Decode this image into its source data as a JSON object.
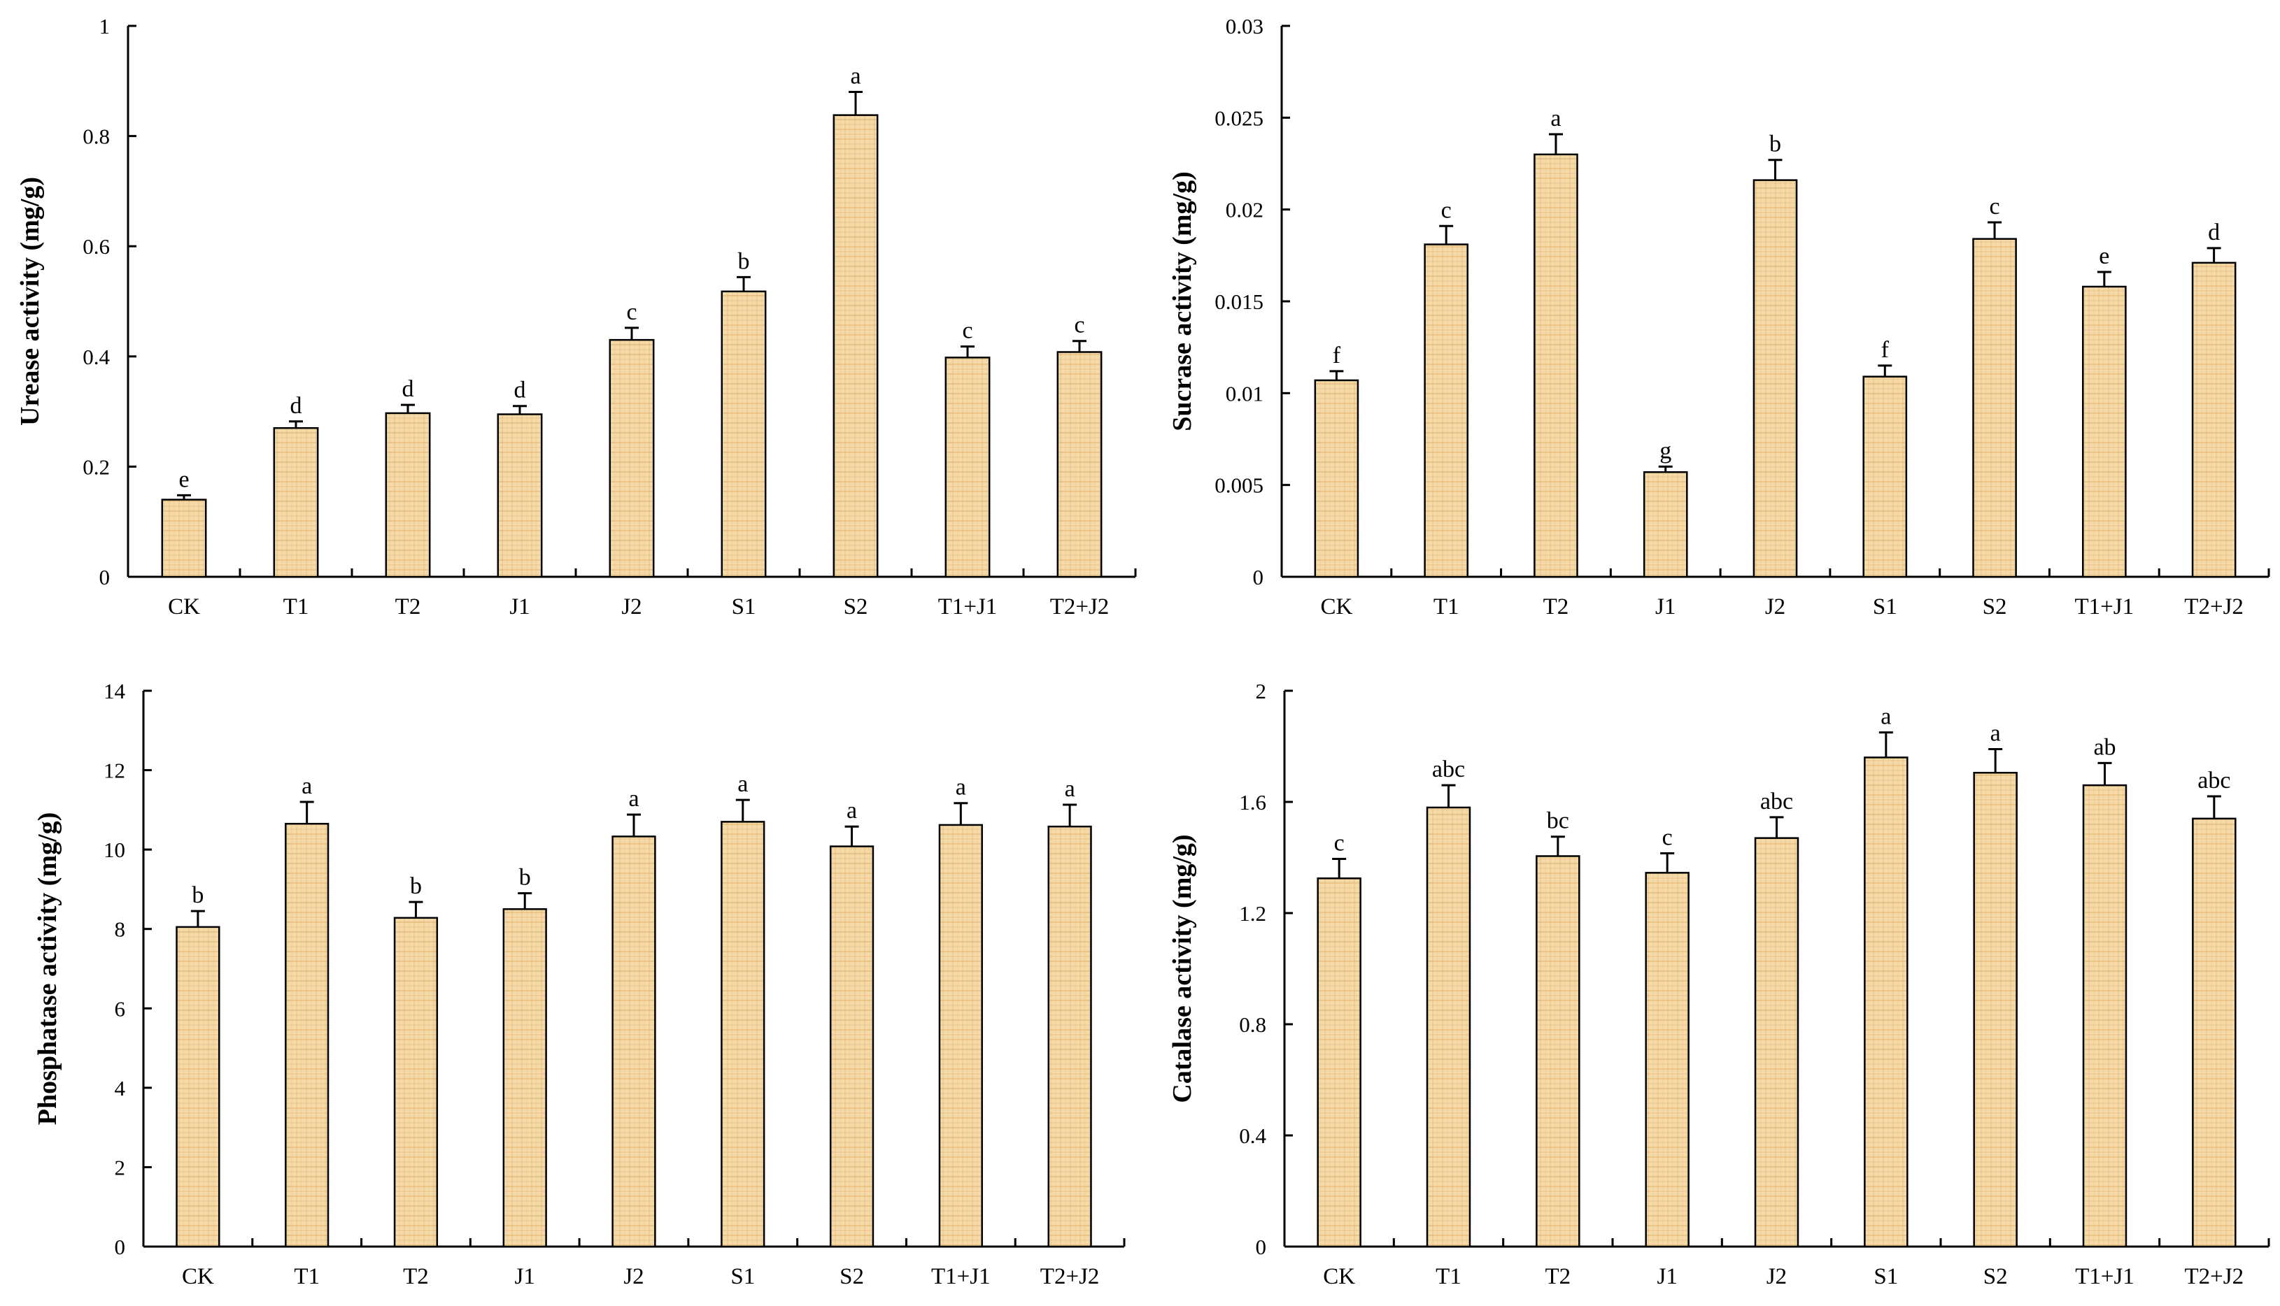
{
  "colors": {
    "bar_fill": "#f5d9a6",
    "bar_texture": "#d9a866",
    "axis": "#000000"
  },
  "chart_data": [
    {
      "type": "bar",
      "id": "urease",
      "ylabel": "Urease activity (mg/g)",
      "categories": [
        "CK",
        "T1",
        "T2",
        "J1",
        "J2",
        "S1",
        "S2",
        "T1+J1",
        "T2+J2"
      ],
      "values": [
        0.14,
        0.27,
        0.297,
        0.295,
        0.43,
        0.518,
        0.838,
        0.398,
        0.408
      ],
      "errors": [
        0.008,
        0.012,
        0.015,
        0.015,
        0.022,
        0.026,
        0.042,
        0.02,
        0.02
      ],
      "significance": [
        "e",
        "d",
        "d",
        "d",
        "c",
        "b",
        "a",
        "c",
        "c"
      ],
      "ylim": [
        0,
        1
      ],
      "yticks": [
        0,
        0.2,
        0.4,
        0.6,
        0.8,
        1
      ],
      "ytick_labels": [
        "0",
        "0.2",
        "0.4",
        "0.6",
        "0.8",
        "1"
      ]
    },
    {
      "type": "bar",
      "id": "sucrase",
      "ylabel": "Sucrase activity (mg/g)",
      "categories": [
        "CK",
        "T1",
        "T2",
        "J1",
        "J2",
        "S1",
        "S2",
        "T1+J1",
        "T2+J2"
      ],
      "values": [
        0.0107,
        0.0181,
        0.023,
        0.0057,
        0.0216,
        0.0109,
        0.0184,
        0.0158,
        0.0171
      ],
      "errors": [
        0.0005,
        0.001,
        0.0011,
        0.0003,
        0.0011,
        0.0006,
        0.0009,
        0.0008,
        0.0008
      ],
      "significance": [
        "f",
        "c",
        "a",
        "g",
        "b",
        "f",
        "c",
        "e",
        "d"
      ],
      "ylim": [
        0,
        0.03
      ],
      "yticks": [
        0,
        0.005,
        0.01,
        0.015,
        0.02,
        0.025,
        0.03
      ],
      "ytick_labels": [
        "0",
        "0.005",
        "0.01",
        "0.015",
        "0.02",
        "0.025",
        "0.03"
      ]
    },
    {
      "type": "bar",
      "id": "phosphatase",
      "ylabel": "Phosphatase activity (mg/g)",
      "categories": [
        "CK",
        "T1",
        "T2",
        "J1",
        "J2",
        "S1",
        "S2",
        "T1+J1",
        "T2+J2"
      ],
      "values": [
        8.05,
        10.65,
        8.28,
        8.5,
        10.33,
        10.7,
        10.08,
        10.62,
        10.58
      ],
      "errors": [
        0.4,
        0.55,
        0.4,
        0.4,
        0.55,
        0.55,
        0.5,
        0.55,
        0.55
      ],
      "significance": [
        "b",
        "a",
        "b",
        "b",
        "a",
        "a",
        "a",
        "a",
        "a"
      ],
      "ylim": [
        0,
        14
      ],
      "yticks": [
        0,
        2,
        4,
        6,
        8,
        10,
        12,
        14
      ],
      "ytick_labels": [
        "0",
        "2",
        "4",
        "6",
        "8",
        "10",
        "12",
        "14"
      ]
    },
    {
      "type": "bar",
      "id": "catalase",
      "ylabel": "Catalase activity (mg/g)",
      "categories": [
        "CK",
        "T1",
        "T2",
        "J1",
        "J2",
        "S1",
        "S2",
        "T1+J1",
        "T2+J2"
      ],
      "values": [
        1.325,
        1.58,
        1.405,
        1.345,
        1.47,
        1.76,
        1.705,
        1.66,
        1.54
      ],
      "errors": [
        0.07,
        0.08,
        0.07,
        0.07,
        0.075,
        0.09,
        0.085,
        0.08,
        0.08
      ],
      "significance": [
        "c",
        "abc",
        "bc",
        "c",
        "abc",
        "a",
        "a",
        "ab",
        "abc"
      ],
      "ylim": [
        0,
        2
      ],
      "yticks": [
        0,
        0.4,
        0.8,
        1.2,
        1.6,
        2
      ],
      "ytick_labels": [
        "0",
        "0.4",
        "0.8",
        "1.2",
        "1.6",
        "2"
      ]
    }
  ]
}
